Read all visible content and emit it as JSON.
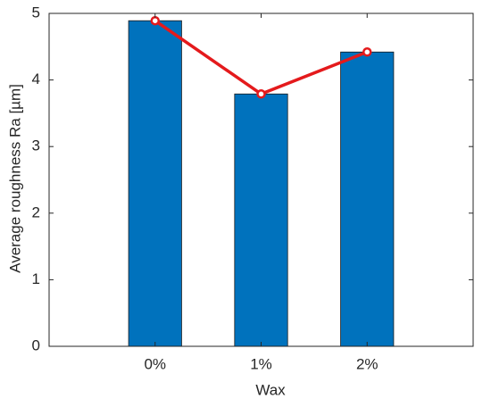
{
  "chart_data": {
    "type": "bar",
    "xlabel": "Wax",
    "ylabel": "Average roughness Ra [µm]",
    "categories": [
      "0%",
      "1%",
      "2%"
    ],
    "series": [
      {
        "type": "bar",
        "color": "#0072bd",
        "values": [
          4.89,
          3.79,
          4.42
        ]
      },
      {
        "type": "line",
        "color": "#e41a1c",
        "values": [
          4.89,
          3.79,
          4.42
        ]
      }
    ],
    "ylim": [
      0,
      5
    ],
    "yticks": [
      0,
      1,
      2,
      3,
      4,
      5
    ]
  }
}
